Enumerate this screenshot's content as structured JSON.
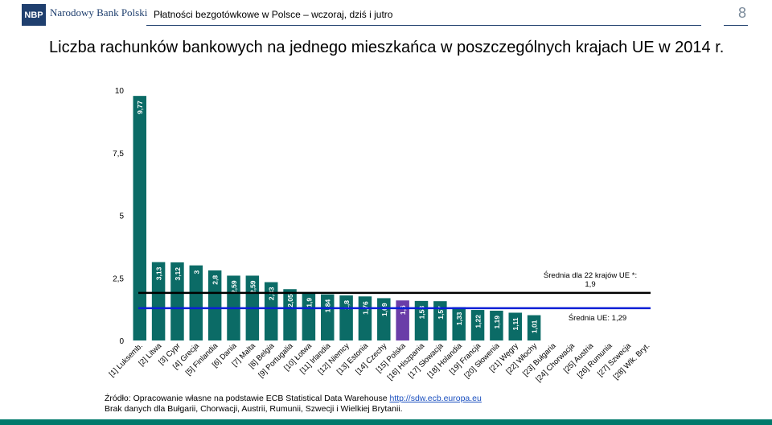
{
  "header": {
    "logo": "NBP",
    "bank_name": "Narodowy Bank Polski",
    "presentation_title": "Płatności bezgotówkowe w Polsce – wczoraj, dziś i jutro",
    "page_number": "8"
  },
  "headline": "Liczba rachunków bankowych na jednego mieszkańca w poszczególnych krajach UE w 2014 r.",
  "chart_data": {
    "type": "bar",
    "categories": [
      "[1] Luksemb.",
      "[2] Litwa",
      "[3] Cypr",
      "[4] Grecja",
      "[5] Finlandia",
      "[6] Dania",
      "[7] Malta",
      "[8] Belgia",
      "[9] Portugalia",
      "[10] Łotwa",
      "[11] Irlandia",
      "[12] Niemcy",
      "[13] Estonia",
      "[14] Czechy",
      "[15] Polska",
      "[16] Hiszpania",
      "[17] Słowacja",
      "[18] Holandia",
      "[19] Francja",
      "[20] Słowenia",
      "[21] Węgry",
      "[22] Włochy",
      "[23] Bułgaria",
      "[24] Chorwacja",
      "[25] Austria",
      "[26] Rumunia",
      "[27] Szwecja",
      "[28] Wlk. Bryt."
    ],
    "values": [
      9.77,
      3.13,
      3.12,
      3,
      2.8,
      2.59,
      2.59,
      2.33,
      2.05,
      1.9,
      1.84,
      1.8,
      1.76,
      1.69,
      1.6,
      1.58,
      1.57,
      1.33,
      1.22,
      1.19,
      1.11,
      1.01,
      null,
      null,
      null,
      null,
      null,
      null
    ],
    "value_labels": [
      "9,77",
      "3,13",
      "3,12",
      "3",
      "2,8",
      "2,59",
      "2,59",
      "2,33",
      "2,05",
      "1,9",
      "1,84",
      "1,8",
      "1,76",
      "1,69",
      "1,6",
      "1,58",
      "1,57",
      "1,33",
      "1,22",
      "1,19",
      "1,11",
      "1,01",
      "",
      "",
      "",
      "",
      "",
      ""
    ],
    "highlight_category": "[15] Polska",
    "colors": {
      "bar": "#0b6b66",
      "highlight": "#6a3da8",
      "avg22_line": "#000000",
      "avg_eu_line": "#0a1fd6"
    },
    "yticks": [
      "0",
      "2,5",
      "5",
      "7,5",
      "10"
    ],
    "ylim": [
      0,
      10
    ],
    "reference_lines": [
      {
        "value": 1.9,
        "label": "Średnia dla 22 krajów UE *:",
        "label2": "1,9"
      },
      {
        "value": 1.29,
        "label": "Średnia UE: 1,29"
      }
    ]
  },
  "source": {
    "line1_prefix": "Źródło: Opracowanie własne na podstawie ECB Statistical Data Warehouse ",
    "link": "http://sdw.ecb.europa.eu",
    "line2": "Brak danych dla Bułgarii, Chorwacji, Austrii, Rumunii, Szwecji i Wielkiej Brytanii."
  }
}
